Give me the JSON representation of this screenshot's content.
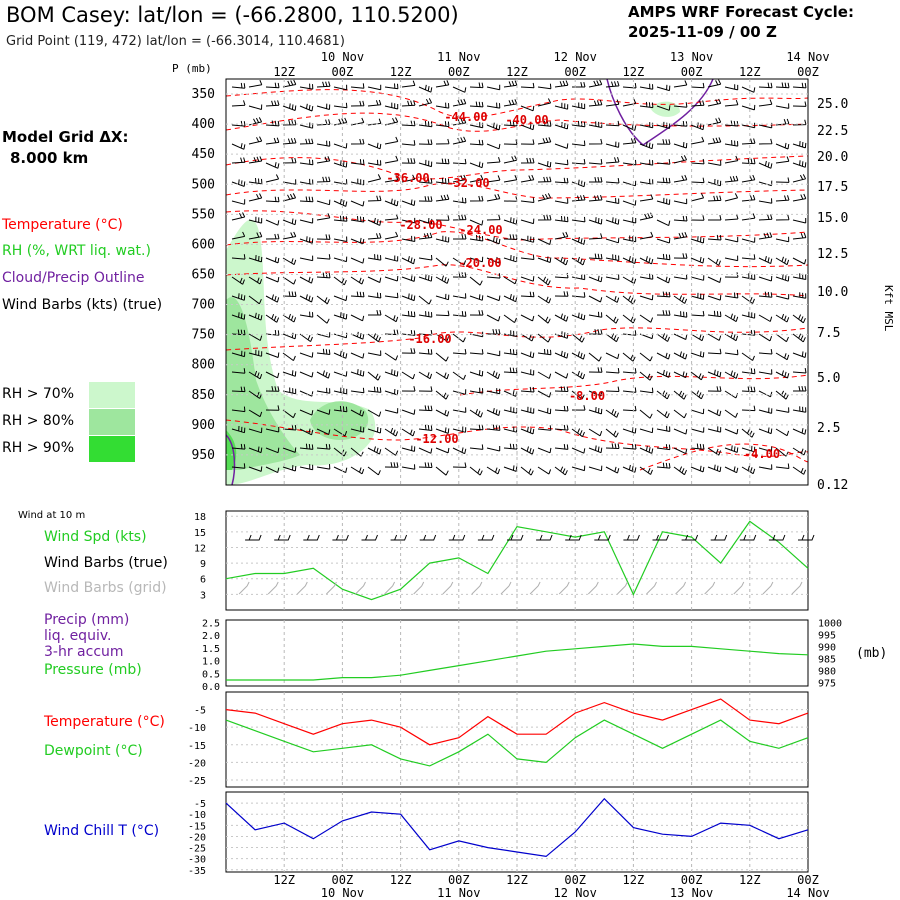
{
  "header": {
    "title": "BOM Casey:  lat/lon = (-66.2800, 110.5200)",
    "subtitle": "Grid Point (119, 472) lat/lon = (-66.3014, 110.4681)",
    "cycle_label": "AMPS WRF Forecast Cycle:",
    "cycle_value": "2025-11-09 / 00  Z",
    "grid_label": "Model Grid ΔX:",
    "grid_value": "8.000 km"
  },
  "colors": {
    "temperature": "#ff0000",
    "rh": "#22cc22",
    "cloud": "#7020a0",
    "wind": "#000000",
    "wind_grid": "#b0b0b0",
    "wind_chill": "#0000cc",
    "rh70": "#ccf7cc",
    "rh80": "#9ee69e",
    "rh90": "#33dd33"
  },
  "time_axis": {
    "top_dates": [
      "10 Nov",
      "11 Nov",
      "12 Nov",
      "13 Nov",
      "14 Nov"
    ],
    "hours": [
      "12Z",
      "00Z",
      "12Z",
      "00Z",
      "12Z",
      "00Z",
      "12Z",
      "00Z",
      "12Z",
      "00Z"
    ],
    "bottom_dates": [
      "10 Nov",
      "11 Nov",
      "12 Nov",
      "13 Nov",
      "14 Nov"
    ]
  },
  "upper_panel": {
    "pressure_label": "P (mb)",
    "pressure_levels": [
      "350",
      "400",
      "450",
      "500",
      "550",
      "600",
      "650",
      "700",
      "750",
      "800",
      "850",
      "900",
      "950"
    ],
    "height_label": "Kft MSL",
    "heights": [
      "25.0",
      "22.5",
      "20.0",
      "17.5",
      "15.0",
      "12.5",
      "10.0",
      "7.5",
      "5.0",
      "2.5",
      "0.12"
    ],
    "legend": {
      "temperature": "Temperature (°C)",
      "rh": "RH (%, WRT liq. wat.)",
      "cloud": "Cloud/Precip Outline",
      "wind": "Wind Barbs (kts) (true)"
    },
    "rh_thresholds": [
      "RH > 70%",
      "RH > 80%",
      "RH > 90%"
    ]
  },
  "temp_labels": [
    "-44.00",
    "-40.00",
    "-36.00",
    "-32.00",
    "-28.00",
    "-24.00",
    "-20.00",
    "-16.00",
    "-8.00",
    "-12.00",
    "-4.00"
  ],
  "wind_panel": {
    "title": "Wind at 10 m",
    "yticks": [
      "18",
      "15",
      "12",
      "9",
      "6",
      "3"
    ],
    "legend_spd": "Wind Spd (kts)",
    "legend_barbs_true": "Wind Barbs (true)",
    "legend_barbs_grid": "Wind Barbs (grid)"
  },
  "precip_panel": {
    "legend_precip": "Precip (mm)",
    "legend_liq": "liq. equiv.",
    "legend_accum": "3-hr accum",
    "legend_pressure": "Pressure (mb)",
    "left_ticks": [
      "2.5",
      "2.0",
      "1.5",
      "1.0",
      "0.5",
      "0.0"
    ],
    "right_ticks": [
      "1000",
      "995",
      "990",
      "985",
      "980",
      "975"
    ],
    "right_unit": "(mb)"
  },
  "temp_panel": {
    "legend_temp": "Temperature (°C)",
    "legend_dew": "Dewpoint (°C)",
    "yticks": [
      "-5",
      "-10",
      "-15",
      "-20",
      "-25"
    ]
  },
  "chill_panel": {
    "legend": "Wind Chill T (°C)",
    "yticks": [
      "-5",
      "-10",
      "-15",
      "-20",
      "-25",
      "-30",
      "-35"
    ]
  },
  "chart_data": [
    {
      "type": "line",
      "title": "Wind at 10 m",
      "x_hours": [
        0,
        6,
        12,
        18,
        24,
        30,
        36,
        42,
        48,
        54,
        60,
        66,
        72,
        78,
        84,
        90,
        96,
        102,
        108,
        114,
        120
      ],
      "series": [
        {
          "name": "Wind Spd (kts)",
          "values": [
            6,
            7,
            7,
            8,
            4,
            2,
            4,
            9,
            10,
            7,
            16,
            15,
            14,
            15,
            3,
            15,
            14,
            9,
            17,
            13,
            8
          ]
        }
      ],
      "ylim": [
        0,
        18
      ]
    },
    {
      "type": "line",
      "title": "Pressure (mb)",
      "x_hours": [
        0,
        6,
        12,
        18,
        24,
        30,
        36,
        42,
        48,
        54,
        60,
        66,
        72,
        78,
        84,
        90,
        96,
        102,
        108,
        114,
        120
      ],
      "series": [
        {
          "name": "Pressure (mb)",
          "values": [
            976,
            976,
            976,
            976,
            977,
            977,
            978,
            980,
            982,
            984,
            986,
            988,
            989,
            990,
            991,
            990,
            990,
            989,
            988,
            987,
            986.5
          ]
        }
      ],
      "ylim": [
        975,
        1000
      ]
    },
    {
      "type": "line",
      "title": "Temperature / Dewpoint",
      "x_hours": [
        0,
        6,
        12,
        18,
        24,
        30,
        36,
        42,
        48,
        54,
        60,
        66,
        72,
        78,
        84,
        90,
        96,
        102,
        108,
        114,
        120
      ],
      "series": [
        {
          "name": "Temperature (°C)",
          "values": [
            -5,
            -6,
            -9,
            -12,
            -9,
            -8,
            -10,
            -15,
            -13,
            -7,
            -12,
            -12,
            -6,
            -3,
            -6,
            -8,
            -5,
            -2,
            -8,
            -9,
            -6
          ]
        },
        {
          "name": "Dewpoint (°C)",
          "values": [
            -8,
            -11,
            -14,
            -17,
            -16,
            -15,
            -19,
            -21,
            -17,
            -12,
            -19,
            -20,
            -13,
            -8,
            -12,
            -16,
            -12,
            -8,
            -14,
            -16,
            -13
          ]
        }
      ],
      "ylim": [
        -25,
        0
      ]
    },
    {
      "type": "line",
      "title": "Wind Chill T (°C)",
      "x_hours": [
        0,
        6,
        12,
        18,
        24,
        30,
        36,
        42,
        48,
        54,
        60,
        66,
        72,
        78,
        84,
        90,
        96,
        102,
        108,
        114,
        120
      ],
      "series": [
        {
          "name": "Wind Chill T (°C)",
          "values": [
            -5,
            -17,
            -14,
            -21,
            -13,
            -9,
            -10,
            -26,
            -22,
            -25,
            -27,
            -29,
            -18,
            -3,
            -16,
            -19,
            -20,
            -14,
            -15,
            -21,
            -17
          ]
        }
      ],
      "ylim": [
        -35,
        0
      ]
    }
  ]
}
